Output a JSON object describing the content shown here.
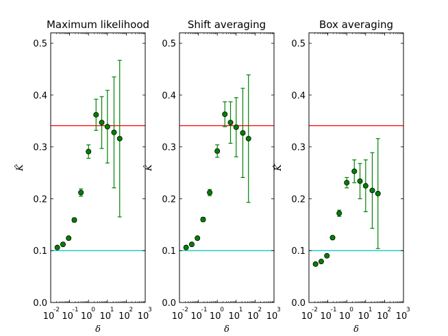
{
  "chart_data": [
    {
      "type": "scatter",
      "title": "Maximum likelihood",
      "xlabel": "δ",
      "ylabel": "K̂",
      "xscale": "log",
      "xlim_exp": [
        -2,
        3
      ],
      "ylim": [
        0.0,
        0.52
      ],
      "yticks": [
        "0.0",
        "0.1",
        "0.2",
        "0.3",
        "0.4",
        "0.5"
      ],
      "xtick_bases": [
        "10",
        "10",
        "10",
        "10",
        "10",
        "10"
      ],
      "xtick_exps": [
        "-2",
        "-1",
        "0",
        "1",
        "2",
        "3"
      ],
      "reference_lines": [
        {
          "y": 0.341,
          "color": "#ff0000"
        },
        {
          "y": 0.1,
          "color": "#00bfbf"
        }
      ],
      "marker_color": "#007f00",
      "errorbar_color": "#008000",
      "points": [
        {
          "x_exp": -1.65,
          "y": 0.106,
          "err": 0.003
        },
        {
          "x_exp": -1.35,
          "y": 0.112,
          "err": 0.003
        },
        {
          "x_exp": -1.05,
          "y": 0.124,
          "err": 0.003
        },
        {
          "x_exp": -0.75,
          "y": 0.159,
          "err": 0.004
        },
        {
          "x_exp": -0.4,
          "y": 0.212,
          "err": 0.007
        },
        {
          "x_exp": 0.0,
          "y": 0.291,
          "err": 0.013
        },
        {
          "x_exp": 0.4,
          "y": 0.362,
          "err": 0.03
        },
        {
          "x_exp": 0.7,
          "y": 0.347,
          "err": 0.05
        },
        {
          "x_exp": 1.0,
          "y": 0.339,
          "err": 0.07
        },
        {
          "x_exp": 1.35,
          "y": 0.328,
          "err": 0.107
        },
        {
          "x_exp": 1.65,
          "y": 0.316,
          "err": 0.151
        }
      ]
    },
    {
      "type": "scatter",
      "title": "Shift averaging",
      "xlabel": "δ",
      "ylabel": "K̂",
      "xscale": "log",
      "xlim_exp": [
        -2,
        3
      ],
      "ylim": [
        0.0,
        0.52
      ],
      "yticks": [
        "0.0",
        "0.1",
        "0.2",
        "0.3",
        "0.4",
        "0.5"
      ],
      "xtick_bases": [
        "10",
        "10",
        "10",
        "10",
        "10",
        "10"
      ],
      "xtick_exps": [
        "-2",
        "-1",
        "0",
        "1",
        "2",
        "3"
      ],
      "reference_lines": [
        {
          "y": 0.341,
          "color": "#ff0000"
        },
        {
          "y": 0.1,
          "color": "#00bfbf"
        }
      ],
      "marker_color": "#007f00",
      "errorbar_color": "#008000",
      "points": [
        {
          "x_exp": -1.65,
          "y": 0.106,
          "err": 0.003
        },
        {
          "x_exp": -1.35,
          "y": 0.112,
          "err": 0.003
        },
        {
          "x_exp": -1.05,
          "y": 0.124,
          "err": 0.003
        },
        {
          "x_exp": -0.75,
          "y": 0.16,
          "err": 0.004
        },
        {
          "x_exp": -0.4,
          "y": 0.212,
          "err": 0.006
        },
        {
          "x_exp": 0.0,
          "y": 0.292,
          "err": 0.012
        },
        {
          "x_exp": 0.4,
          "y": 0.363,
          "err": 0.024
        },
        {
          "x_exp": 0.7,
          "y": 0.347,
          "err": 0.04
        },
        {
          "x_exp": 1.0,
          "y": 0.338,
          "err": 0.057
        },
        {
          "x_exp": 1.35,
          "y": 0.327,
          "err": 0.086
        },
        {
          "x_exp": 1.65,
          "y": 0.316,
          "err": 0.123
        }
      ]
    },
    {
      "type": "scatter",
      "title": "Box averaging",
      "xlabel": "δ",
      "ylabel": "K̂",
      "xscale": "log",
      "xlim_exp": [
        -2,
        3
      ],
      "ylim": [
        0.0,
        0.52
      ],
      "yticks": [
        "0.0",
        "0.1",
        "0.2",
        "0.3",
        "0.4",
        "0.5"
      ],
      "xtick_bases": [
        "10",
        "10",
        "10",
        "10",
        "10",
        "10"
      ],
      "xtick_exps": [
        "-2",
        "-1",
        "0",
        "1",
        "2",
        "3"
      ],
      "reference_lines": [
        {
          "y": 0.341,
          "color": "#ff0000"
        },
        {
          "y": 0.1,
          "color": "#00bfbf"
        }
      ],
      "marker_color": "#007f00",
      "errorbar_color": "#008000",
      "points": [
        {
          "x_exp": -1.65,
          "y": 0.074,
          "err": 0.002
        },
        {
          "x_exp": -1.35,
          "y": 0.079,
          "err": 0.002
        },
        {
          "x_exp": -1.05,
          "y": 0.09,
          "err": 0.002
        },
        {
          "x_exp": -0.75,
          "y": 0.125,
          "err": 0.003
        },
        {
          "x_exp": -0.4,
          "y": 0.172,
          "err": 0.006
        },
        {
          "x_exp": 0.0,
          "y": 0.231,
          "err": 0.01
        },
        {
          "x_exp": 0.4,
          "y": 0.253,
          "err": 0.022
        },
        {
          "x_exp": 0.7,
          "y": 0.234,
          "err": 0.034
        },
        {
          "x_exp": 1.0,
          "y": 0.225,
          "err": 0.05
        },
        {
          "x_exp": 1.35,
          "y": 0.216,
          "err": 0.073
        },
        {
          "x_exp": 1.65,
          "y": 0.21,
          "err": 0.106
        }
      ]
    }
  ]
}
